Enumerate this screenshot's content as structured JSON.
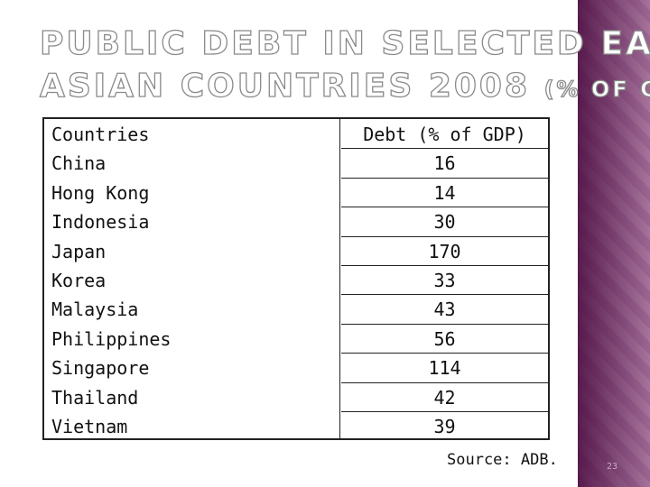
{
  "slide": {
    "title_lines": [
      "PUBLIC DEBT IN SELECTED EAST",
      "ASIAN COUNTRIES 2008"
    ],
    "title_suffix": "(% OF GDP)",
    "table": {
      "header": [
        "Countries",
        "Debt (% of GDP)"
      ],
      "rows": [
        [
          "China",
          "16"
        ],
        [
          "Hong Kong",
          "14"
        ],
        [
          "Indonesia",
          "30"
        ],
        [
          "Japan",
          "170"
        ],
        [
          "Korea",
          "33"
        ],
        [
          "Malaysia",
          "43"
        ],
        [
          "Philippines",
          "56"
        ],
        [
          "Singapore",
          "114"
        ],
        [
          "Thailand",
          "42"
        ],
        [
          "Vietnam",
          "39"
        ]
      ]
    },
    "source": "Source: ADB.",
    "page_number": "23"
  }
}
